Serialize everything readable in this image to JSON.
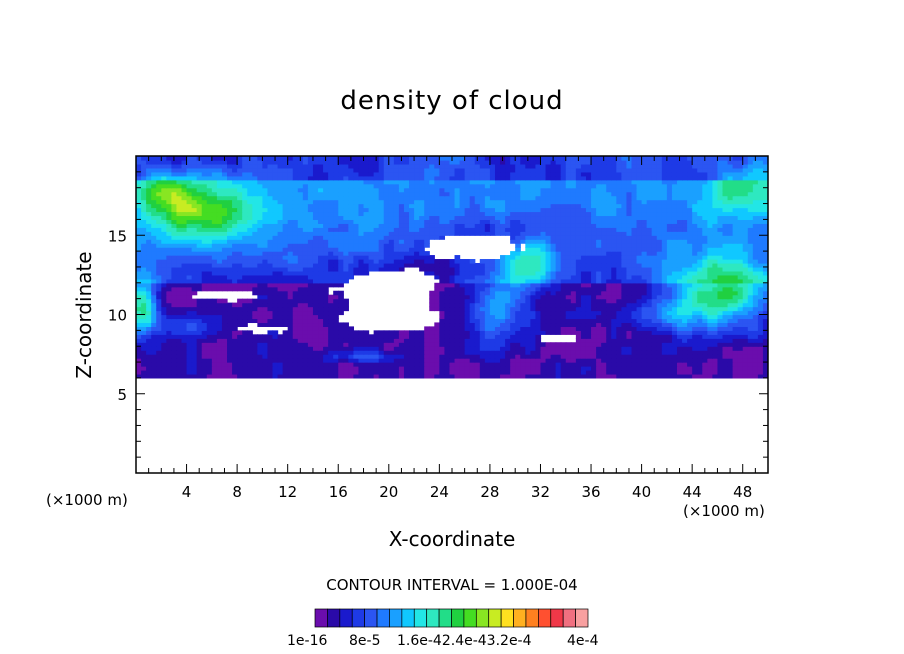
{
  "chart_data": {
    "type": "heatmap",
    "title": "density of cloud",
    "xlabel": "X-coordinate",
    "ylabel": "Z-coordinate",
    "x_unit": "(×1000 m)",
    "xlim": [
      0,
      50
    ],
    "ylim": [
      0,
      20
    ],
    "x_ticks": [
      4,
      8,
      12,
      16,
      20,
      24,
      28,
      32,
      36,
      40,
      44,
      48
    ],
    "y_ticks": [
      5,
      10,
      15
    ],
    "contour_interval": "CONTOUR INTERVAL = 1.000E-04",
    "colorbar": {
      "labels": [
        "1e-16",
        "8e-5",
        "1.6e-4",
        "2.4e-4",
        "3.2e-4",
        "4e-4"
      ],
      "colors": [
        "#6a0dad",
        "#2a0aa8",
        "#1a1acd",
        "#1e3ae6",
        "#2b55f2",
        "#1f7aff",
        "#1aa0ff",
        "#10c8ff",
        "#22e6e6",
        "#2ee8c0",
        "#22dd88",
        "#20d040",
        "#44dd22",
        "#88e622",
        "#c8ec22",
        "#ffe020",
        "#ffb020",
        "#ff8020",
        "#ff5030",
        "#f03848",
        "#f07080",
        "#f8a0a0"
      ],
      "mid_label_tokens": [
        "1.6e-4",
        "2.4e-4",
        "3.2e-4"
      ]
    },
    "regions": [
      {
        "level": "very low (1e-16 to 8e-5 band)",
        "description": "dense layer between z≈6 and z≈12 km, with clear gaps near x≈14-26 and z≈9-13"
      },
      {
        "level": "low-moderate",
        "description": "broad layer z≈12-19 km across entire domain"
      },
      {
        "level": "moderate (cyan/green)",
        "description": "patches near x≈0-8 z≈15-19, x≈26-32 z≈8-13, x≈40-50 z≈9-14"
      },
      {
        "level": "none",
        "description": "no cloud below z≈6 km"
      }
    ]
  }
}
